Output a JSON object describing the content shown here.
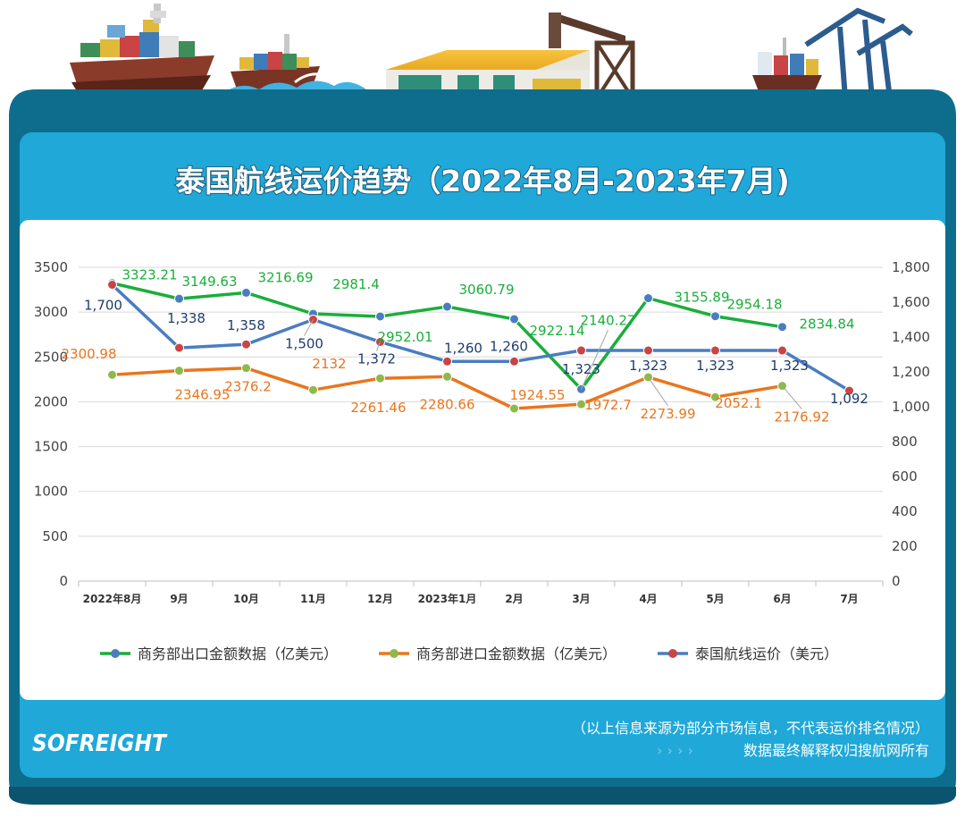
{
  "header": {
    "title": "泰国航线运价趋势（2022年8月-2023年7月)"
  },
  "footer": {
    "logo": "SOFREIGHT",
    "note_line1": "（以上信息来源为部分市场信息，不代表运价排名情况）",
    "note_line2": "数据最终解释权归搜航网所有"
  },
  "colors": {
    "frame": "#0E6D8C",
    "panel": "#1FA8D8",
    "export": "#1AAE3B",
    "import": "#E8761E",
    "freight_line": "#4A7DC0",
    "freight_marker": "#C94444",
    "freight_label": "#1F3C6E"
  },
  "chart_data": {
    "type": "line",
    "title": "泰国航线运价趋势（2022年8月-2023年7月)",
    "categories": [
      "2022年8月",
      "9月",
      "10月",
      "11月",
      "12月",
      "2023年1月",
      "2月",
      "3月",
      "4月",
      "5月",
      "6月",
      "7月"
    ],
    "y_left": {
      "min": 0,
      "max": 3500,
      "ticks": [
        "0",
        "500",
        "1000",
        "1500",
        "2000",
        "2500",
        "3000",
        "3500"
      ]
    },
    "y_right": {
      "min": 0,
      "max": 1800,
      "ticks": [
        "0",
        "200",
        "400",
        "600",
        "800",
        "1,000",
        "1,200",
        "1,400",
        "1,600",
        "1,800"
      ]
    },
    "grid": true,
    "legend_position": "bottom",
    "series": [
      {
        "name": "商务部出口金额数据（亿美元）",
        "axis": "left",
        "values": [
          3323.21,
          3149.63,
          3216.69,
          2981.4,
          2952.01,
          3060.79,
          2922.14,
          2140.27,
          3155.89,
          2954.18,
          2834.84,
          null
        ],
        "labels": [
          "3323.21",
          "3149.63",
          "3216.69",
          "2981.4",
          "2952.01",
          "3060.79",
          "2922.14",
          "2140.27",
          "3155.89",
          "2954.18",
          "2834.84",
          ""
        ]
      },
      {
        "name": "商务部进口金额数据（亿美元）",
        "axis": "left",
        "values": [
          2300.98,
          2346.95,
          2376.2,
          2132,
          2261.46,
          2280.66,
          1924.55,
          1972.7,
          2273.99,
          2052.1,
          2176.92,
          null
        ],
        "labels": [
          "2300.98",
          "2346.95",
          "2376.2",
          "2132",
          "2261.46",
          "2280.66",
          "1924.55",
          "1972.7",
          "2273.99",
          "2052.1",
          "2176.92",
          ""
        ]
      },
      {
        "name": "泰国航线运价（美元）",
        "axis": "right",
        "values": [
          1700,
          1338,
          1358,
          1500,
          1372,
          1260,
          1260,
          1323,
          1323,
          1323,
          1323,
          1092
        ],
        "labels": [
          "1,700",
          "1,338",
          "1,358",
          "1,500",
          "1,372",
          "1,260",
          "1,260",
          "1,323",
          "1,323",
          "1,323",
          "1,323",
          "1,092"
        ]
      }
    ]
  }
}
